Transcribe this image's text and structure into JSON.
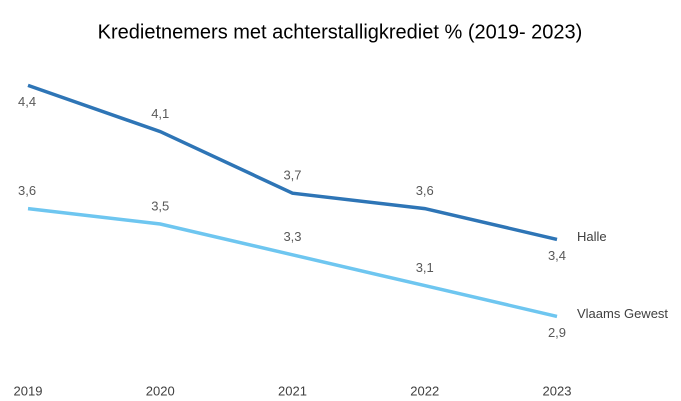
{
  "chart_data": {
    "type": "line",
    "title": "Kredietnemers met achterstalligkrediet % (2019- 2023)",
    "categories": [
      "2019",
      "2020",
      "2021",
      "2022",
      "2023"
    ],
    "series": [
      {
        "name": "Halle",
        "color": "#2e75b6",
        "values": [
          4.4,
          4.1,
          3.7,
          3.6,
          3.4
        ],
        "value_labels": [
          "4,4",
          "4,1",
          "3,7",
          "3,6",
          "3,4"
        ]
      },
      {
        "name": "Vlaams Gewest",
        "color": "#6ec6f0",
        "values": [
          3.6,
          3.5,
          3.3,
          3.1,
          2.9
        ],
        "value_labels": [
          "3,6",
          "3,5",
          "3,3",
          "3,1",
          "2,9"
        ]
      }
    ],
    "ylim": [
      2.5,
      4.5
    ],
    "grid": false
  }
}
